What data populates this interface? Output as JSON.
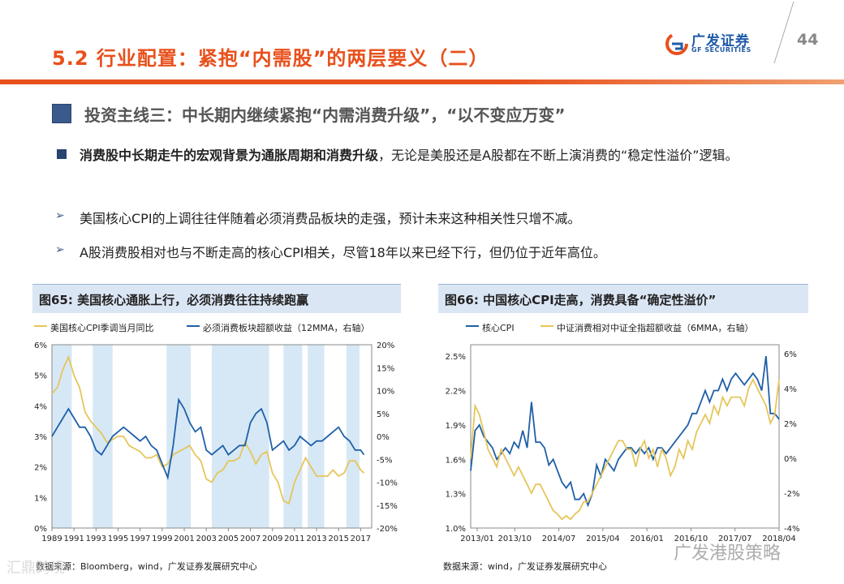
{
  "header": {
    "title": "5.2 行业配置：紧抱“内需股”的两层要义（二）",
    "logo_text": "广发证券",
    "logo_sub": "GF SECURITIES",
    "page_number": "44"
  },
  "topic": "投资主线三：中长期内继续紧抱“内需消费升级”，“以不变应万变”",
  "bullet": {
    "bold_part": "消费股中长期走牛的宏观背景为通胀周期和消费升级",
    "rest": "，无论是美股还是A股都在不断上演消费的“稳定性溢价”逻辑。"
  },
  "sub_points": [
    "美国核心CPI的上调往往伴随着必须消费品板块的走强，预计未来这种相关性只增不减。",
    "A股消费股相对也与不断走高的核心CPI相关，尽管18年以来已经下行，但仍位于近年高位。"
  ],
  "figures": {
    "left_title": "图65:  美国核心通胀上行，必须消费往往持续跑赢",
    "right_title": "图66:  中国核心CPI走高，消费具备“确定性溢价”",
    "left_source": "数据来源：Bloomberg，wind，广发证券发展研究中心",
    "right_source": "数据来源：wind，广发证券发展研究中心"
  },
  "watermark": {
    "right": "广发港股策略",
    "left": "汇鼎跨境"
  },
  "colors": {
    "accent": "#e8501c",
    "brand_blue": "#1e5aa8",
    "series_blue": "#1f5fa8",
    "series_gold": "#e6c55a",
    "recession_band": "#d6e8f5"
  },
  "chart_data": [
    {
      "type": "line",
      "title": "图65:  美国核心通胀上行，必须消费往往持续跑赢",
      "xlabel": "",
      "x_ticks": [
        "1989",
        "1991",
        "1993",
        "1995",
        "1997",
        "1999",
        "2001",
        "2003",
        "2005",
        "2007",
        "2009",
        "2011",
        "2013",
        "2015",
        "2017"
      ],
      "x_range": [
        1989,
        2018
      ],
      "y_left": {
        "ticks": [
          "0%",
          "1%",
          "2%",
          "3%",
          "4%",
          "5%",
          "6%"
        ],
        "range": [
          0,
          6
        ]
      },
      "y_right": {
        "ticks": [
          "-20%",
          "-15%",
          "-10%",
          "-5%",
          "0%",
          "5%",
          "10%",
          "15%",
          "20%"
        ],
        "range": [
          -20,
          20
        ]
      },
      "shaded_periods": [
        [
          1989.0,
          1990.8
        ],
        [
          1992.7,
          1994.5
        ],
        [
          1999.4,
          2001.6
        ],
        [
          2003.5,
          2008.7
        ],
        [
          2010.0,
          2011.7
        ],
        [
          2012.2,
          2013.7
        ],
        [
          2015.7,
          2016.9
        ]
      ],
      "series": [
        {
          "name": "美国核心CPI季调当月同比",
          "axis": "left",
          "color": "#e6c55a",
          "x": [
            1989,
            1989.5,
            1990,
            1990.5,
            1991,
            1991.5,
            1992,
            1992.5,
            1993,
            1993.5,
            1994,
            1994.5,
            1995,
            1995.5,
            1996,
            1996.5,
            1997,
            1997.5,
            1998,
            1998.5,
            1999,
            1999.5,
            2000,
            2000.5,
            2001,
            2001.5,
            2002,
            2002.5,
            2003,
            2003.5,
            2004,
            2004.5,
            2005,
            2005.5,
            2006,
            2006.5,
            2007,
            2007.5,
            2008,
            2008.5,
            2009,
            2009.5,
            2010,
            2010.5,
            2011,
            2011.5,
            2012,
            2012.5,
            2013,
            2013.5,
            2014,
            2014.5,
            2015,
            2015.5,
            2016,
            2016.5,
            2017,
            2017.3
          ],
          "values": [
            4.4,
            4.6,
            5.2,
            5.6,
            5.0,
            4.6,
            3.8,
            3.5,
            3.3,
            3.1,
            2.8,
            2.9,
            3.0,
            3.0,
            2.7,
            2.6,
            2.5,
            2.3,
            2.3,
            2.4,
            2.0,
            2.1,
            2.4,
            2.5,
            2.6,
            2.7,
            2.4,
            2.2,
            1.6,
            1.5,
            1.8,
            1.9,
            2.2,
            2.2,
            2.3,
            2.8,
            2.5,
            2.1,
            2.4,
            2.5,
            1.8,
            1.5,
            0.9,
            0.8,
            1.5,
            1.9,
            2.3,
            2.0,
            1.7,
            1.7,
            1.7,
            1.9,
            1.7,
            1.8,
            2.2,
            2.2,
            1.9,
            1.8
          ]
        },
        {
          "name": "必须消费板块超额收益（12MMA，右轴）",
          "axis": "right",
          "color": "#1f5fa8",
          "x": [
            1989,
            1989.5,
            1990,
            1990.5,
            1991,
            1991.5,
            1992,
            1992.5,
            1993,
            1993.5,
            1994,
            1994.5,
            1995,
            1995.5,
            1996,
            1996.5,
            1997,
            1997.5,
            1998,
            1998.5,
            1999,
            1999.5,
            2000,
            2000.5,
            2001,
            2001.5,
            2002,
            2002.5,
            2003,
            2003.5,
            2004,
            2004.5,
            2005,
            2005.5,
            2006,
            2006.5,
            2007,
            2007.5,
            2008,
            2008.5,
            2009,
            2009.5,
            2010,
            2010.5,
            2011,
            2011.5,
            2012,
            2012.5,
            2013,
            2013.5,
            2014,
            2014.5,
            2015,
            2015.5,
            2016,
            2016.5,
            2017,
            2017.3
          ],
          "values": [
            0,
            2,
            4,
            6,
            4,
            2,
            2,
            0,
            -3,
            -4,
            -2,
            0,
            1,
            2,
            1,
            0,
            -1,
            0,
            -2,
            -3,
            -6,
            -9,
            -2,
            8,
            6,
            3,
            1,
            2,
            -3,
            -4,
            -3,
            -2,
            -4,
            -3,
            -2,
            -2,
            3,
            5,
            6,
            3,
            -3,
            -2,
            -1,
            -3,
            -2,
            0,
            -1,
            -2,
            -1,
            -1,
            0,
            1,
            2,
            0,
            -1,
            -3,
            -3,
            -4
          ]
        }
      ]
    },
    {
      "type": "line",
      "title": "图66:  中国核心CPI走高，消费具备“确定性溢价”",
      "xlabel": "",
      "x_ticks": [
        "2013/01",
        "2013/10",
        "2014/07",
        "2015/04",
        "2016/01",
        "2016/10",
        "2017/07",
        "2018/04"
      ],
      "y_left": {
        "ticks": [
          "1.0%",
          "1.3%",
          "1.6%",
          "1.9%",
          "2.2%",
          "2.5%"
        ],
        "range": [
          1.0,
          2.6
        ]
      },
      "y_right": {
        "ticks": [
          "-4%",
          "-2%",
          "0%",
          "2%",
          "4%",
          "6%"
        ],
        "range": [
          -4,
          6.5
        ]
      },
      "series": [
        {
          "name": "核心CPI",
          "axis": "left",
          "color": "#1f5fa8",
          "values": [
            1.5,
            1.85,
            1.9,
            1.8,
            1.75,
            1.7,
            1.6,
            1.65,
            1.7,
            1.65,
            1.75,
            1.7,
            1.85,
            1.7,
            2.1,
            1.75,
            1.75,
            1.7,
            1.55,
            1.6,
            1.5,
            1.4,
            1.35,
            1.4,
            1.25,
            1.25,
            1.3,
            1.2,
            1.3,
            1.55,
            1.45,
            1.6,
            1.55,
            1.5,
            1.6,
            1.65,
            1.7,
            1.7,
            1.65,
            1.7,
            1.65,
            1.7,
            1.6,
            1.7,
            1.7,
            1.65,
            1.7,
            1.75,
            1.8,
            1.85,
            1.9,
            2.0,
            2.0,
            2.1,
            2.2,
            2.1,
            2.2,
            2.2,
            2.3,
            2.2,
            2.3,
            2.35,
            2.3,
            2.25,
            2.3,
            2.35,
            2.3,
            2.2,
            2.5,
            2.0,
            2.0,
            1.95
          ]
        },
        {
          "name": "中证消费相对中证全指超额收益（6MMA，右轴）",
          "axis": "right",
          "color": "#e6c55a",
          "values": [
            0,
            3,
            2.5,
            1.5,
            0.5,
            0,
            -0.5,
            0.5,
            0,
            -0.5,
            -1,
            -0.5,
            -1,
            -1.5,
            -2,
            -1.5,
            -1.5,
            -2,
            -2.5,
            -3,
            -3.2,
            -3.5,
            -3.3,
            -3.5,
            -3.2,
            -3,
            -2.5,
            -2.5,
            -2,
            -1.5,
            -1,
            -0.5,
            0,
            0.5,
            1,
            1,
            0.5,
            0.5,
            -0.5,
            0.5,
            1,
            0,
            0.5,
            -0.5,
            0.5,
            0,
            -1,
            -0.5,
            0.5,
            0,
            1,
            0.5,
            1.5,
            2,
            2.5,
            2,
            3,
            2.5,
            3.5,
            3,
            3.5,
            3.5,
            3.5,
            3,
            4,
            4.5,
            4,
            3.5,
            3,
            2,
            2.5,
            4.5
          ]
        }
      ]
    }
  ]
}
